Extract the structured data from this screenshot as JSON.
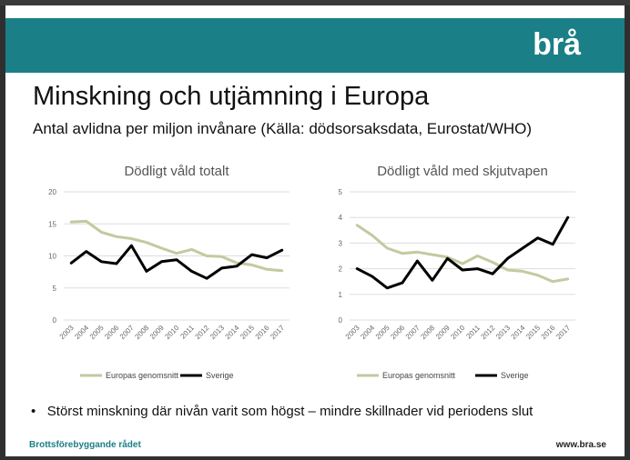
{
  "header": {
    "logo": "brå"
  },
  "title": "Minskning och utjämning i Europa",
  "subtitle": "Antal avlidna per miljon invånare (Källa: dödsorsaksdata, Eurostat/WHO)",
  "colors": {
    "brand": "#1a7f86",
    "europe": "#c4c99f",
    "sweden": "#000000"
  },
  "chart_data": [
    {
      "type": "line",
      "title": "Dödligt våld totalt",
      "x": [
        "2003",
        "2004",
        "2005",
        "2006",
        "2007",
        "2008",
        "2009",
        "2010",
        "2011",
        "2012",
        "2013",
        "2014",
        "2015",
        "2016",
        "2017"
      ],
      "ylim": [
        0,
        20
      ],
      "yticks": [
        "0",
        "5",
        "10",
        "15",
        "20"
      ],
      "series": [
        {
          "name": "Europas genomsnitt",
          "values": [
            15.3,
            15.4,
            13.7,
            13.0,
            12.7,
            12.1,
            11.2,
            10.4,
            11.0,
            10.0,
            9.9,
            8.9,
            8.6,
            7.9,
            7.7
          ]
        },
        {
          "name": "Sverige",
          "values": [
            8.9,
            10.7,
            9.1,
            8.8,
            11.6,
            7.6,
            9.1,
            9.4,
            7.6,
            6.5,
            8.1,
            8.4,
            10.2,
            9.7,
            10.9
          ]
        }
      ]
    },
    {
      "type": "line",
      "title": "Dödligt våld med skjutvapen",
      "x": [
        "2003",
        "2004",
        "2005",
        "2006",
        "2007",
        "2008",
        "2009",
        "2010",
        "2011",
        "2012",
        "2013",
        "2014",
        "2015",
        "2016",
        "2017"
      ],
      "ylim": [
        0,
        5
      ],
      "yticks": [
        "0",
        "1",
        "2",
        "3",
        "4",
        "5"
      ],
      "series": [
        {
          "name": "Europas genomsnitt",
          "values": [
            3.7,
            3.3,
            2.8,
            2.6,
            2.65,
            2.55,
            2.45,
            2.2,
            2.5,
            2.25,
            1.95,
            1.9,
            1.75,
            1.5,
            1.6
          ]
        },
        {
          "name": "Sverige",
          "values": [
            2.0,
            1.7,
            1.25,
            1.45,
            2.3,
            1.55,
            2.4,
            1.95,
            2.0,
            1.8,
            2.4,
            2.8,
            3.2,
            2.95,
            4.0
          ]
        }
      ]
    }
  ],
  "bullet": "Störst minskning där nivån varit som högst – mindre skillnader vid periodens slut",
  "footer": {
    "left": "Brottsförebyggande rådet",
    "right": "www.bra.se"
  }
}
